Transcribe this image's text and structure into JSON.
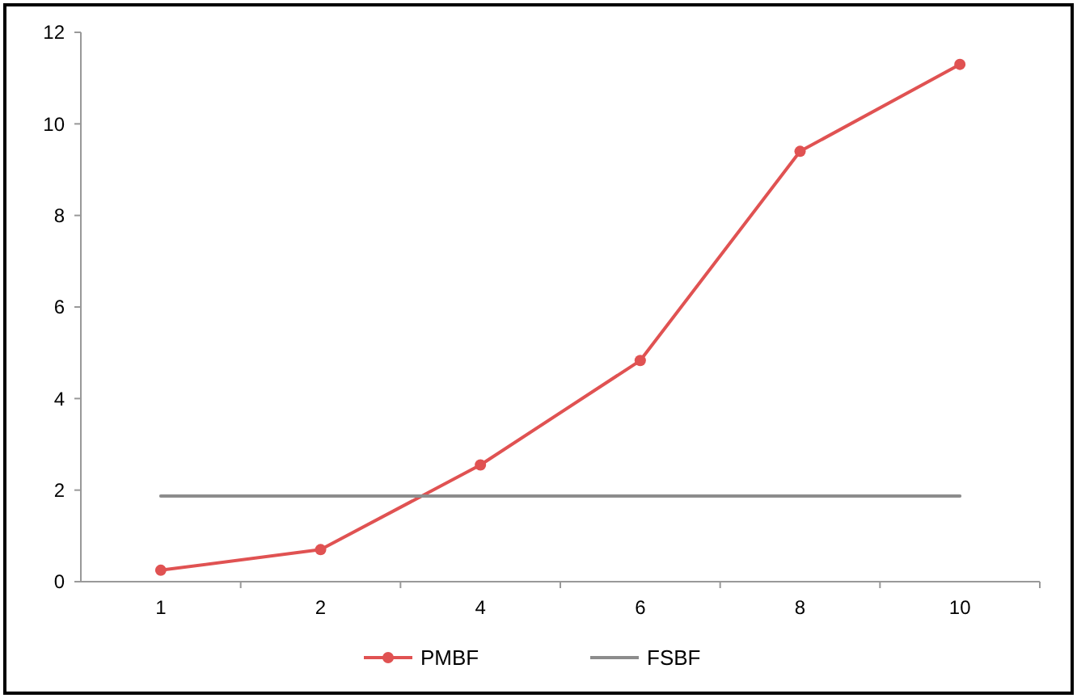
{
  "chart_data": {
    "type": "line",
    "categories": [
      "1",
      "2",
      "4",
      "6",
      "8",
      "10"
    ],
    "series": [
      {
        "name": "PMBF",
        "color": "#e05252",
        "values": [
          0.25,
          0.7,
          2.55,
          4.83,
          9.4,
          11.3
        ],
        "marker": "circle"
      },
      {
        "name": "FSBF",
        "color": "#8c8c8c",
        "values": [
          1.87,
          1.87,
          1.87,
          1.87,
          1.87,
          1.87
        ],
        "marker": "none"
      }
    ],
    "ylim": [
      0,
      12
    ],
    "yticks": [
      0,
      2,
      4,
      6,
      8,
      10,
      12
    ],
    "grid": false,
    "legend": "bottom"
  }
}
